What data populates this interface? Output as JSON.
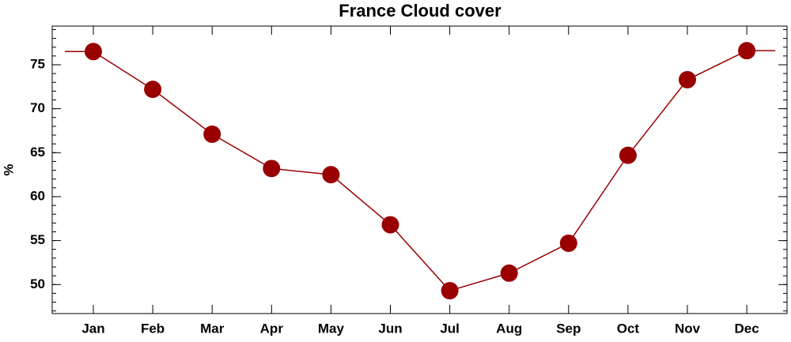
{
  "chart_data": {
    "type": "line",
    "title": "France Cloud cover",
    "y_label": "%",
    "categories": [
      "Jan",
      "Feb",
      "Mar",
      "Apr",
      "May",
      "Jun",
      "Jul",
      "Aug",
      "Sep",
      "Oct",
      "Nov",
      "Dec"
    ],
    "values": [
      76.5,
      72.2,
      67.1,
      63.2,
      62.5,
      56.8,
      49.3,
      51.3,
      54.7,
      64.7,
      73.3,
      76.6
    ],
    "color": "#990000",
    "ylim": [
      46.7,
      79.4
    ],
    "yticks": [
      50,
      55,
      60,
      65,
      70,
      75
    ]
  }
}
